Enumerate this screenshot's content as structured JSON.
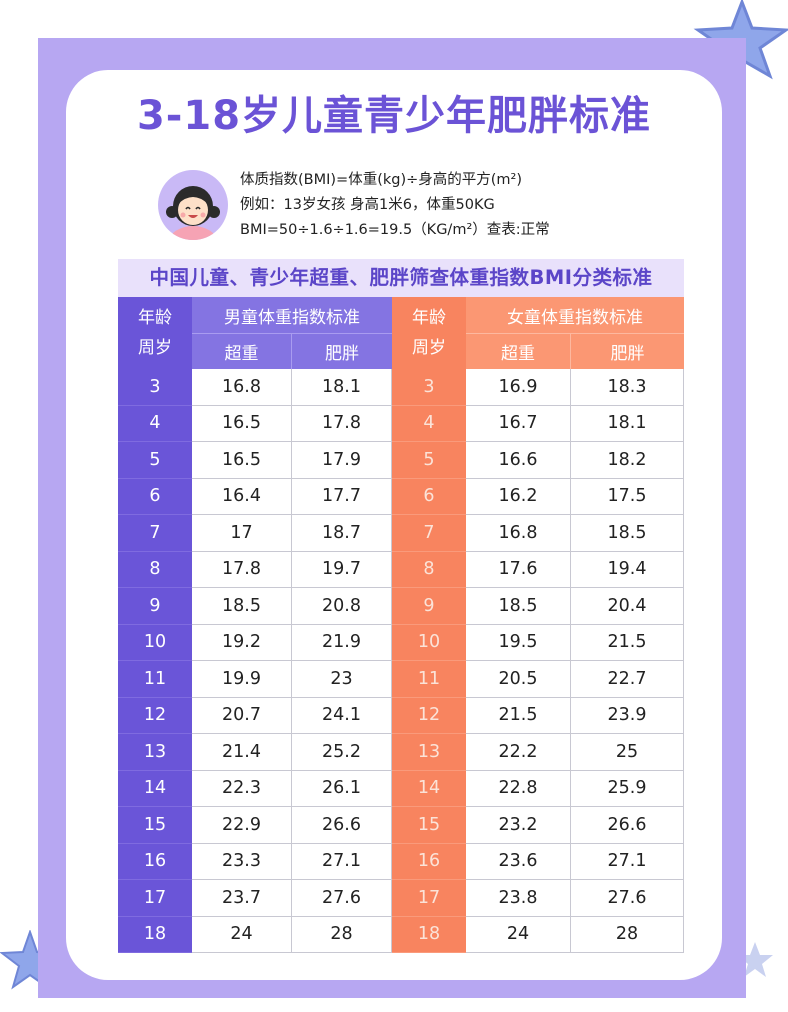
{
  "title": "3-18岁儿童青少年肥胖标准",
  "formula": {
    "line1": "体质指数(BMI)=体重(kg)÷身高的平方(m²)",
    "line2": "例如：13岁女孩 身高1米6，体重50KG",
    "line3": "BMI=50÷1.6÷1.6=19.5（KG/m²）查表:正常"
  },
  "subtitle": "中国儿童、青少年超重、肥胖筛查体重指数BMI分类标准",
  "table": {
    "age_header_line1": "年龄",
    "age_header_line2": "周岁",
    "boys_header": "男童体重指数标准",
    "girls_header": "女童体重指数标准",
    "overweight_label": "超重",
    "obese_label": "肥胖",
    "rows": [
      {
        "age": "3",
        "boy_over": "16.8",
        "boy_obese": "18.1",
        "girl_over": "16.9",
        "girl_obese": "18.3"
      },
      {
        "age": "4",
        "boy_over": "16.5",
        "boy_obese": "17.8",
        "girl_over": "16.7",
        "girl_obese": "18.1"
      },
      {
        "age": "5",
        "boy_over": "16.5",
        "boy_obese": "17.9",
        "girl_over": "16.6",
        "girl_obese": "18.2"
      },
      {
        "age": "6",
        "boy_over": "16.4",
        "boy_obese": "17.7",
        "girl_over": "16.2",
        "girl_obese": "17.5"
      },
      {
        "age": "7",
        "boy_over": "17",
        "boy_obese": "18.7",
        "girl_over": "16.8",
        "girl_obese": "18.5"
      },
      {
        "age": "8",
        "boy_over": "17.8",
        "boy_obese": "19.7",
        "girl_over": "17.6",
        "girl_obese": "19.4"
      },
      {
        "age": "9",
        "boy_over": "18.5",
        "boy_obese": "20.8",
        "girl_over": "18.5",
        "girl_obese": "20.4"
      },
      {
        "age": "10",
        "boy_over": "19.2",
        "boy_obese": "21.9",
        "girl_over": "19.5",
        "girl_obese": "21.5"
      },
      {
        "age": "11",
        "boy_over": "19.9",
        "boy_obese": "23",
        "girl_over": "20.5",
        "girl_obese": "22.7"
      },
      {
        "age": "12",
        "boy_over": "20.7",
        "boy_obese": "24.1",
        "girl_over": "21.5",
        "girl_obese": "23.9"
      },
      {
        "age": "13",
        "boy_over": "21.4",
        "boy_obese": "25.2",
        "girl_over": "22.2",
        "girl_obese": "25"
      },
      {
        "age": "14",
        "boy_over": "22.3",
        "boy_obese": "26.1",
        "girl_over": "22.8",
        "girl_obese": "25.9"
      },
      {
        "age": "15",
        "boy_over": "22.9",
        "boy_obese": "26.6",
        "girl_over": "23.2",
        "girl_obese": "26.6"
      },
      {
        "age": "16",
        "boy_over": "23.3",
        "boy_obese": "27.1",
        "girl_over": "23.6",
        "girl_obese": "27.1"
      },
      {
        "age": "17",
        "boy_over": "23.7",
        "boy_obese": "27.6",
        "girl_over": "23.8",
        "girl_obese": "27.6"
      },
      {
        "age": "18",
        "boy_over": "24",
        "boy_obese": "28",
        "girl_over": "24",
        "girl_obese": "28"
      }
    ]
  },
  "colors": {
    "purple_dark": "#6a55d8",
    "purple_mid": "#8474e2",
    "orange_dark": "#f8845f",
    "orange_mid": "#fb9773",
    "frame": "#b7a7f2",
    "title": "#6b53d6"
  },
  "icons": {
    "avatar": "girl-avatar-icon",
    "decoration": "star-icon"
  }
}
